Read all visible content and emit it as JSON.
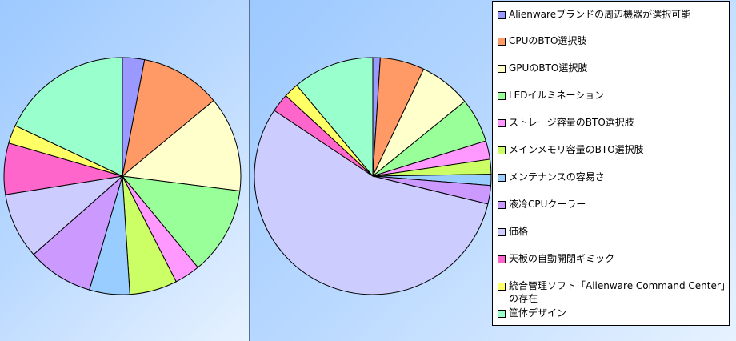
{
  "chart_data": [
    {
      "type": "pie",
      "title": "",
      "categories": [
        "Alienwareブランドの周辺機器が選択可能",
        "CPUのBTO選択肢",
        "GPUのBTO選択肢",
        "LEDイルミネーション",
        "ストレージ容量のBTO選択肢",
        "メインメモリ容量のBTO選択肢",
        "メンテナンスの容易さ",
        "液冷CPUクーラー",
        "価格",
        "天板の自動開閉ギミック",
        "統合管理ソフト「Alienware Command Center」の存在",
        "筐体デザイン"
      ],
      "values": [
        3,
        11,
        13,
        12,
        3.5,
        6.5,
        5.5,
        9,
        9,
        7,
        2.5,
        18
      ]
    },
    {
      "type": "pie",
      "title": "",
      "categories": [
        "Alienwareブランドの周辺機器が選択可能",
        "CPUのBTO選択肢",
        "GPUのBTO選択肢",
        "LEDイルミネーション",
        "ストレージ容量のBTO選択肢",
        "メインメモリ容量のBTO選択肢",
        "メンテナンスの容易さ",
        "液冷CPUクーラー",
        "価格",
        "天板の自動開閉ギミック",
        "統合管理ソフト「Alienware Command Center」の存在",
        "筐体デザイン"
      ],
      "values": [
        1,
        6,
        7,
        6,
        2.5,
        2,
        1.5,
        2.5,
        55,
        2.5,
        2,
        11
      ]
    }
  ],
  "legend": {
    "placement": "right",
    "items": [
      "Alienwareブランドの周辺機器が選択可能",
      "CPUのBTO選択肢",
      "GPUのBTO選択肢",
      "LEDイルミネーション",
      "ストレージ容量のBTO選択肢",
      "メインメモリ容量のBTO選択肢",
      "メンテナンスの容易さ",
      "液冷CPUクーラー",
      "価格",
      "天板の自動開閉ギミック",
      "統合管理ソフト「Alienware Command Center」の存在",
      "筐体デザイン"
    ]
  },
  "colors": [
    "#9999ff",
    "#ff9966",
    "#ffffcc",
    "#99ff99",
    "#ff99ff",
    "#ccff66",
    "#99ccff",
    "#cc99ff",
    "#ccccff",
    "#ff66cc",
    "#ffff66",
    "#99ffcc"
  ]
}
